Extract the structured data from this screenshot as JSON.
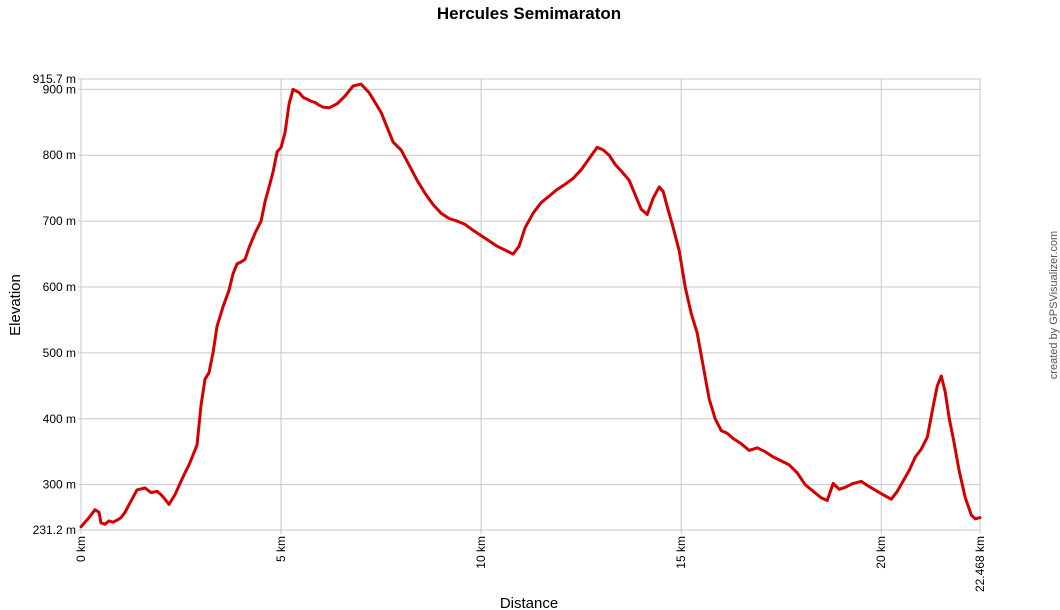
{
  "chart_data": {
    "type": "line",
    "title": "Hercules Semimaraton",
    "xlabel": "Distance",
    "ylabel": "Elevation",
    "credit": "created by GPSVisualizer.com",
    "xlim": [
      0,
      22.468
    ],
    "ylim": [
      231.2,
      915.7
    ],
    "grid": true,
    "line_color": "#d40000",
    "grid_color": "#c8c8c8",
    "x_ticks": [
      {
        "value": 0,
        "label": "0 km"
      },
      {
        "value": 5,
        "label": "5 km"
      },
      {
        "value": 10,
        "label": "10 km"
      },
      {
        "value": 15,
        "label": "15 km"
      },
      {
        "value": 20,
        "label": "20 km"
      },
      {
        "value": 22.468,
        "label": "22.468 km"
      }
    ],
    "y_ticks": [
      {
        "value": 231.2,
        "label": "231.2 m",
        "grid": false
      },
      {
        "value": 300,
        "label": "300 m",
        "grid": true
      },
      {
        "value": 400,
        "label": "400 m",
        "grid": true
      },
      {
        "value": 500,
        "label": "500 m",
        "grid": true
      },
      {
        "value": 600,
        "label": "600 m",
        "grid": true
      },
      {
        "value": 700,
        "label": "700 m",
        "grid": true
      },
      {
        "value": 800,
        "label": "800 m",
        "grid": true
      },
      {
        "value": 900,
        "label": "900 m",
        "grid": true
      },
      {
        "value": 915.7,
        "label": "915.7 m",
        "grid": false
      }
    ],
    "series": [
      {
        "x": [
          0,
          0.2,
          0.35,
          0.45,
          0.5,
          0.6,
          0.7,
          0.8,
          0.9,
          1.0,
          1.1,
          1.25,
          1.4,
          1.6,
          1.75,
          1.9,
          2.0,
          2.1,
          2.2,
          2.35,
          2.5,
          2.6,
          2.7,
          2.8,
          2.9,
          3.0,
          3.1,
          3.2,
          3.3,
          3.4,
          3.55,
          3.7,
          3.8,
          3.9,
          4.0,
          4.1,
          4.2,
          4.35,
          4.5,
          4.6,
          4.7,
          4.8,
          4.9,
          5.0,
          5.1,
          5.2,
          5.3,
          5.45,
          5.55,
          5.65,
          5.75,
          5.85,
          5.95,
          6.05,
          6.2,
          6.4,
          6.6,
          6.8,
          7.0,
          7.2,
          7.35,
          7.5,
          7.6,
          7.7,
          7.8,
          8.0,
          8.2,
          8.4,
          8.6,
          8.8,
          9.0,
          9.2,
          9.4,
          9.6,
          9.8,
          10.0,
          10.2,
          10.4,
          10.6,
          10.8,
          10.95,
          11.1,
          11.3,
          11.5,
          11.7,
          11.9,
          12.1,
          12.3,
          12.5,
          12.7,
          12.9,
          13.05,
          13.2,
          13.35,
          13.5,
          13.7,
          13.85,
          14.0,
          14.15,
          14.3,
          14.45,
          14.55,
          14.65,
          14.8,
          14.95,
          15.1,
          15.25,
          15.4,
          15.55,
          15.7,
          15.85,
          16.0,
          16.15,
          16.3,
          16.5,
          16.7,
          16.9,
          17.1,
          17.3,
          17.5,
          17.7,
          17.9,
          18.1,
          18.3,
          18.5,
          18.65,
          18.8,
          18.95,
          19.1,
          19.3,
          19.5,
          19.7,
          19.9,
          20.1,
          20.25,
          20.4,
          20.55,
          20.7,
          20.85,
          21.0,
          21.15,
          21.3,
          21.4,
          21.5,
          21.6,
          21.7,
          21.8,
          21.95,
          22.1,
          22.25,
          22.35,
          22.468
        ],
        "values": [
          236,
          250,
          262,
          258,
          242,
          240,
          245,
          243,
          246,
          250,
          258,
          275,
          292,
          295,
          288,
          290,
          285,
          278,
          270,
          285,
          305,
          318,
          330,
          345,
          360,
          420,
          460,
          470,
          500,
          540,
          570,
          595,
          620,
          635,
          638,
          642,
          660,
          682,
          700,
          730,
          752,
          775,
          805,
          812,
          835,
          878,
          900,
          895,
          888,
          885,
          882,
          880,
          876,
          873,
          872,
          878,
          890,
          905,
          908,
          895,
          880,
          865,
          850,
          835,
          820,
          808,
          785,
          762,
          742,
          725,
          712,
          704,
          700,
          695,
          686,
          678,
          670,
          662,
          656,
          650,
          662,
          690,
          712,
          728,
          738,
          748,
          756,
          765,
          778,
          795,
          812,
          808,
          800,
          786,
          776,
          762,
          740,
          718,
          710,
          735,
          752,
          745,
          722,
          690,
          655,
          600,
          560,
          530,
          480,
          430,
          400,
          382,
          378,
          370,
          362,
          352,
          356,
          350,
          342,
          336,
          330,
          318,
          300,
          290,
          280,
          276,
          302,
          293,
          296,
          302,
          305,
          297,
          290,
          283,
          278,
          290,
          306,
          322,
          342,
          354,
          372,
          420,
          450,
          465,
          440,
          400,
          370,
          320,
          280,
          254,
          248,
          250
        ]
      }
    ]
  }
}
